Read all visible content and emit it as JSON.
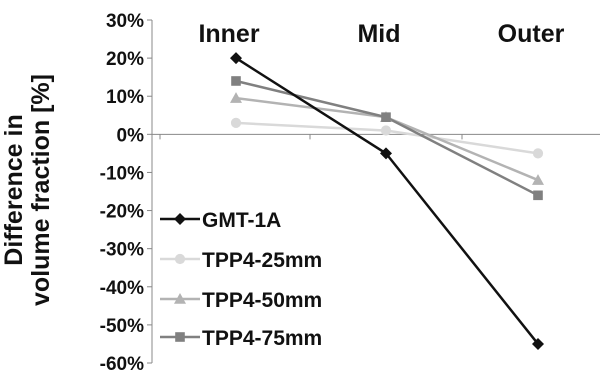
{
  "chart_data": {
    "type": "line",
    "categories": [
      "Inner",
      "Mid",
      "Outer"
    ],
    "ylabel_lines": [
      "Difference in",
      "volume fraction [%]"
    ],
    "ylim": [
      -60,
      30
    ],
    "yticks": [
      30,
      20,
      10,
      0,
      -10,
      -20,
      -30,
      -40,
      -50,
      -60
    ],
    "ytick_labels": [
      "30%",
      "20%",
      "10%",
      "0%",
      "-10%",
      "-20%",
      "-30%",
      "-40%",
      "-50%",
      "-60%"
    ],
    "grid": false,
    "legend_position": "bottom-left",
    "series": [
      {
        "name": "GMT-1A",
        "values": [
          20,
          -5,
          -55
        ],
        "color": "#111111",
        "marker": "diamond"
      },
      {
        "name": "TPP4-25mm",
        "values": [
          3,
          1,
          -5
        ],
        "color": "#d9d9d9",
        "marker": "circle"
      },
      {
        "name": "TPP4-50mm",
        "values": [
          9.5,
          4.5,
          -12
        ],
        "color": "#b3b3b3",
        "marker": "triangle"
      },
      {
        "name": "TPP4-75mm",
        "values": [
          14,
          4.5,
          -16
        ],
        "color": "#808080",
        "marker": "square"
      }
    ]
  }
}
